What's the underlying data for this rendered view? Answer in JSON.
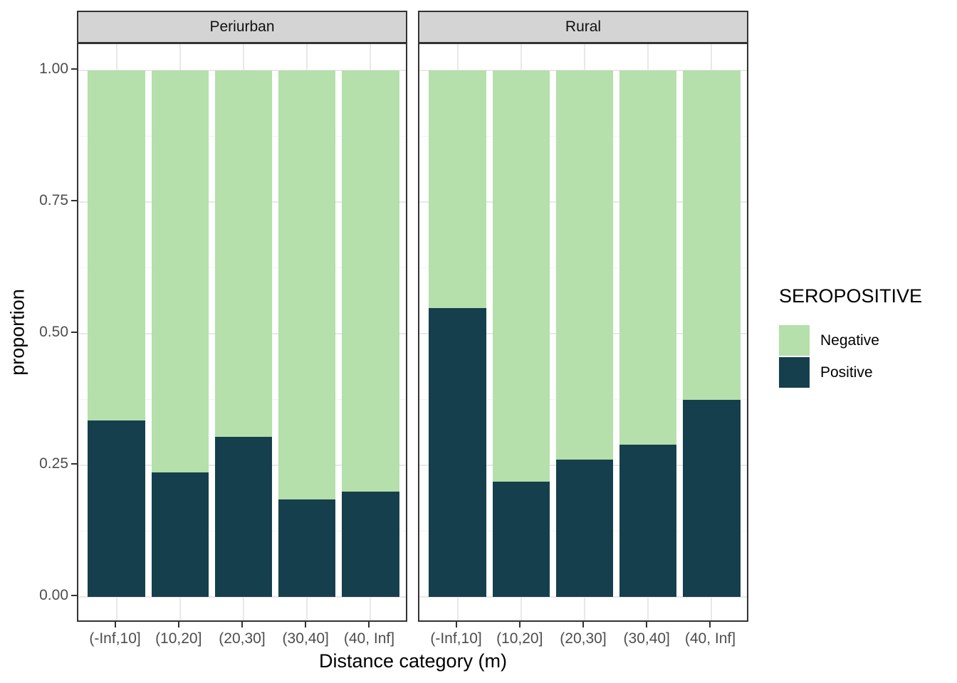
{
  "chart_data": {
    "type": "bar",
    "variant": "stacked_proportion_faceted",
    "categories": [
      "(-Inf,10]",
      "(10,20]",
      "(20,30]",
      "(30,40]",
      "(40, Inf]"
    ],
    "facets": [
      {
        "name": "Periurban",
        "series": [
          {
            "name": "Negative",
            "values": [
              0.665,
              0.763,
              0.696,
              0.815,
              0.8
            ]
          },
          {
            "name": "Positive",
            "values": [
              0.335,
              0.237,
              0.304,
              0.185,
              0.2
            ]
          }
        ]
      },
      {
        "name": "Rural",
        "series": [
          {
            "name": "Negative",
            "values": [
              0.451,
              0.78,
              0.739,
              0.71,
              0.626
            ]
          },
          {
            "name": "Positive",
            "values": [
              0.549,
              0.22,
              0.261,
              0.29,
              0.374
            ]
          }
        ]
      }
    ],
    "xlabel": "Distance category (m)",
    "ylabel": "proportion",
    "ylim": [
      0,
      1
    ],
    "y_major_ticks": [
      {
        "value": 1.0,
        "label": "1.00"
      },
      {
        "value": 0.75,
        "label": "0.75"
      },
      {
        "value": 0.5,
        "label": "0.50"
      },
      {
        "value": 0.25,
        "label": "0.25"
      },
      {
        "value": 0.0,
        "label": "0.00"
      }
    ],
    "y_minor_ticks": [
      0.875,
      0.625,
      0.375,
      0.125
    ],
    "legend": {
      "title": "SEROPOSITIVE",
      "position": "right",
      "items": [
        {
          "label": "Negative",
          "color": "#b5dfab"
        },
        {
          "label": "Positive",
          "color": "#163f4d"
        }
      ]
    },
    "grid": "horizontal major+minor, vertical at category centers",
    "colors": {
      "Negative": "#b5dfab",
      "Positive": "#163f4d"
    }
  },
  "style": {
    "strip_fill": "#d4d4d4",
    "strip_border": "#333333",
    "panel_border": "#333333",
    "grid_major": "#e8e8e8",
    "grid_minor": "#f2f2f2",
    "axis_text": "#4d4d4d",
    "tick_mark": "#333333",
    "background": "#ffffff"
  }
}
